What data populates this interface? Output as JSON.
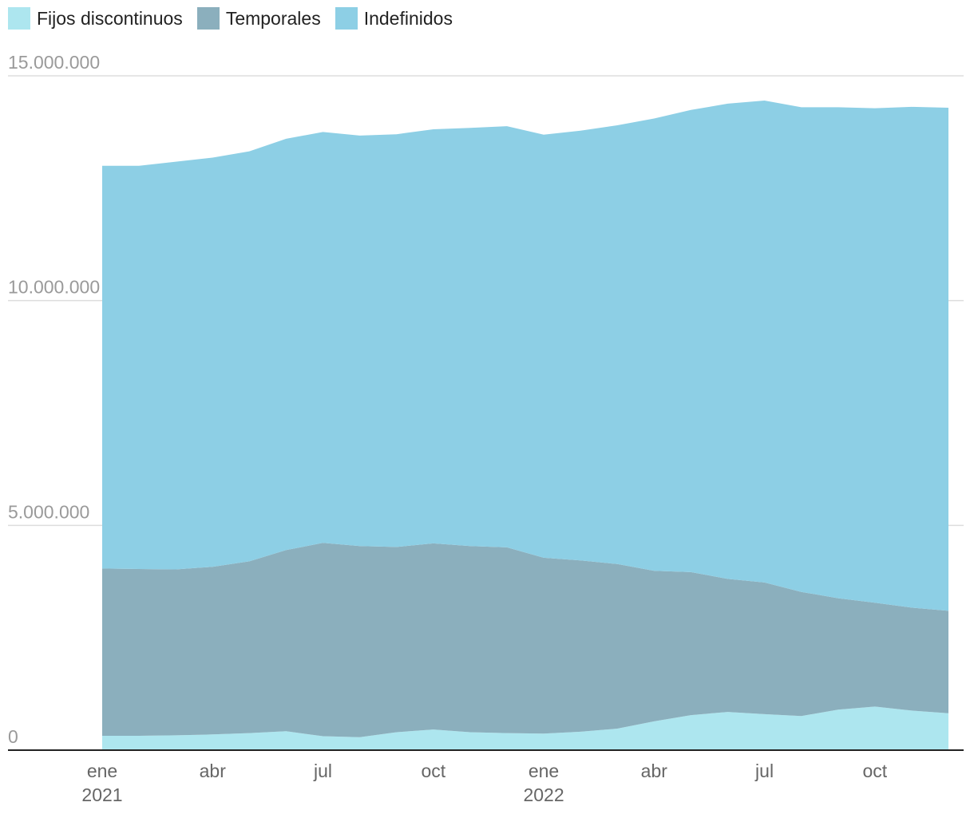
{
  "chart_data": {
    "type": "area",
    "stacked": true,
    "title": "",
    "xlabel": "",
    "ylabel": "",
    "ylim": [
      0,
      15000000
    ],
    "grid": true,
    "legend_position": "top-left",
    "y_ticks": [
      {
        "value": 0,
        "label": "0"
      },
      {
        "value": 5000000,
        "label": "5.000.000"
      },
      {
        "value": 10000000,
        "label": "10.000.000"
      },
      {
        "value": 15000000,
        "label": "15.000.000"
      }
    ],
    "x_ticks": [
      {
        "value": 0,
        "label": "ene",
        "sublabel": "2021"
      },
      {
        "value": 3,
        "label": "abr",
        "sublabel": ""
      },
      {
        "value": 6,
        "label": "jul",
        "sublabel": ""
      },
      {
        "value": 9,
        "label": "oct",
        "sublabel": ""
      },
      {
        "value": 12,
        "label": "ene",
        "sublabel": "2022"
      },
      {
        "value": 15,
        "label": "abr",
        "sublabel": ""
      },
      {
        "value": 18,
        "label": "jul",
        "sublabel": ""
      },
      {
        "value": 21,
        "label": "oct",
        "sublabel": ""
      }
    ],
    "categories": [
      "2021-01",
      "2021-02",
      "2021-03",
      "2021-04",
      "2021-05",
      "2021-06",
      "2021-07",
      "2021-08",
      "2021-09",
      "2021-10",
      "2021-11",
      "2021-12",
      "2022-01",
      "2022-02",
      "2022-03",
      "2022-04",
      "2022-05",
      "2022-06",
      "2022-07",
      "2022-08",
      "2022-09",
      "2022-10",
      "2022-11",
      "2022-12"
    ],
    "series": [
      {
        "name": "Fijos discontinuos",
        "color": "#ade6ef",
        "values": [
          320000,
          320000,
          330000,
          350000,
          380000,
          420000,
          310000,
          290000,
          400000,
          460000,
          400000,
          380000,
          370000,
          410000,
          480000,
          640000,
          780000,
          850000,
          800000,
          760000,
          900000,
          970000,
          880000,
          820000
        ]
      },
      {
        "name": "Temporales",
        "color": "#8bafbd",
        "values": [
          3720000,
          3710000,
          3690000,
          3730000,
          3820000,
          4030000,
          4300000,
          4250000,
          4120000,
          4140000,
          4140000,
          4130000,
          3910000,
          3810000,
          3660000,
          3350000,
          3180000,
          2960000,
          2930000,
          2760000,
          2480000,
          2310000,
          2290000,
          2280000
        ]
      },
      {
        "name": "Indefinidos",
        "color": "#8dcfe5",
        "values": [
          8960000,
          8970000,
          9070000,
          9100000,
          9120000,
          9150000,
          9140000,
          9130000,
          9180000,
          9210000,
          9300000,
          9370000,
          9410000,
          9560000,
          9760000,
          10060000,
          10280000,
          10570000,
          10720000,
          10780000,
          10920000,
          11000000,
          11140000,
          11190000
        ]
      }
    ]
  }
}
